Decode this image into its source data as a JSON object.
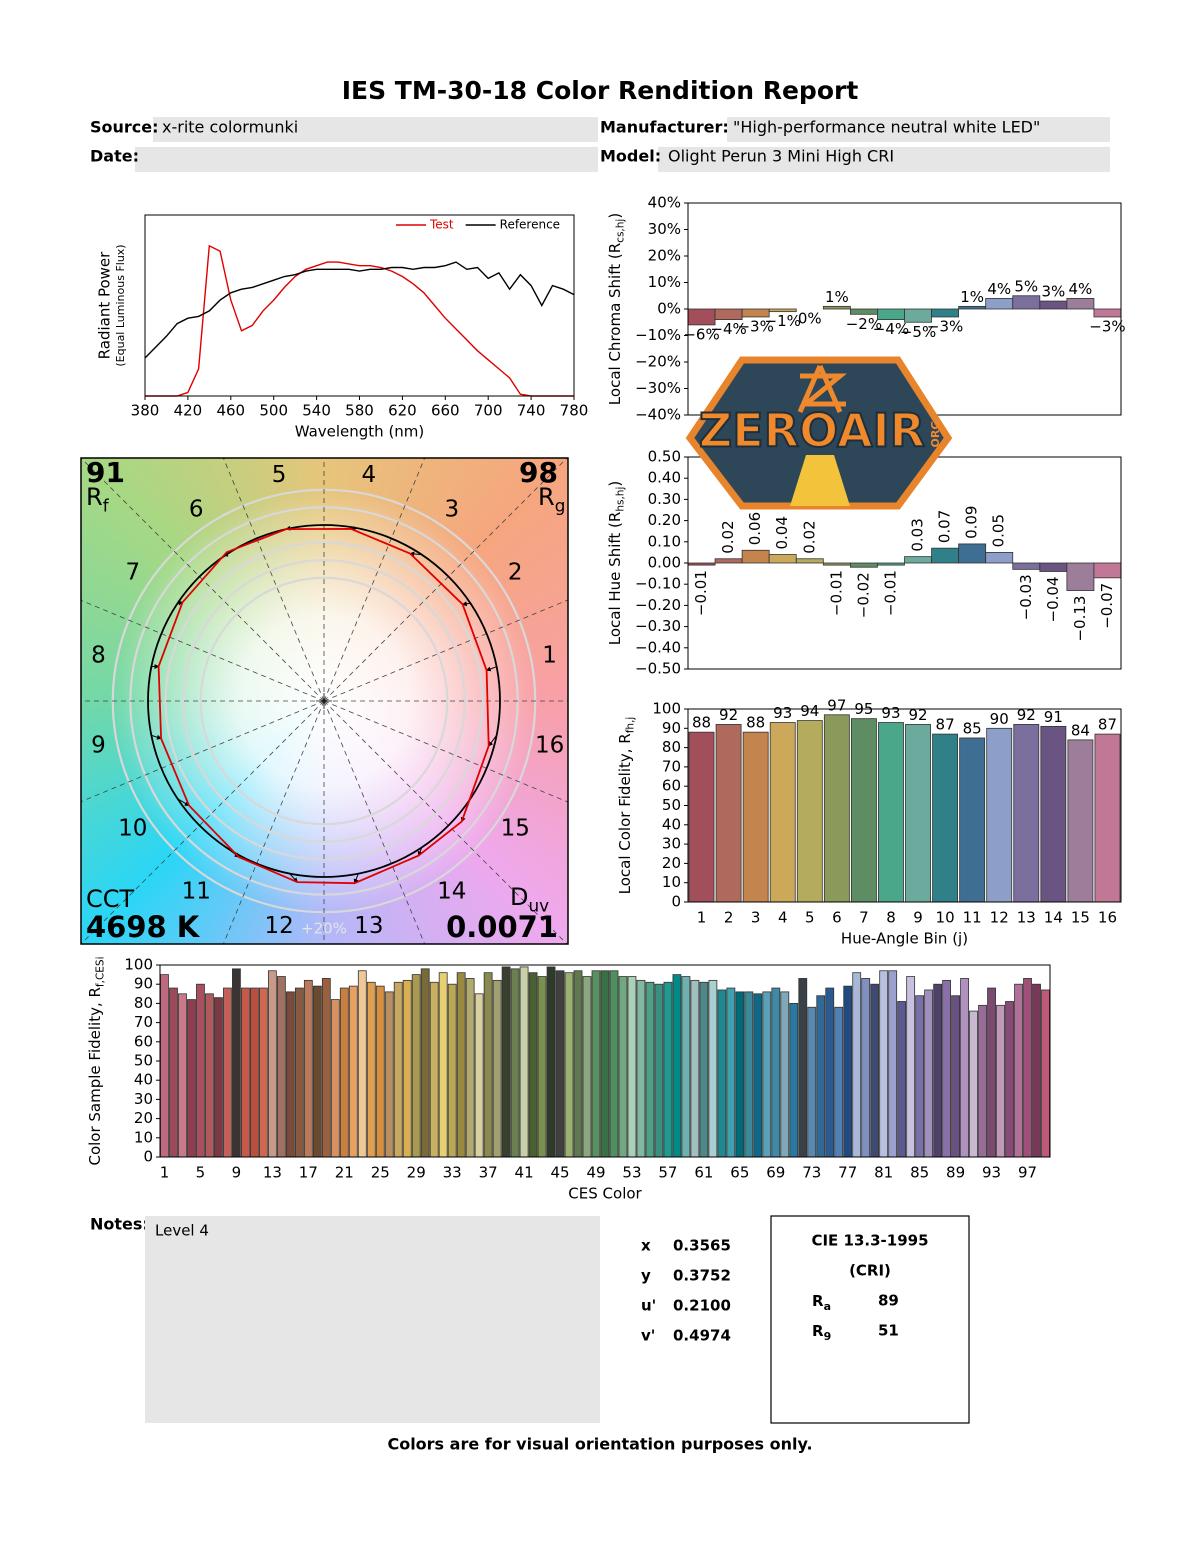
{
  "header": {
    "title": "IES TM-30-18 Color Rendition Report",
    "source": {
      "label": "Source:",
      "value": "x-rite colormunki"
    },
    "manufacturer": {
      "label": "Manufacturer:",
      "value": "\"High-performance neutral white LED\""
    },
    "date": {
      "label": "Date:"
    },
    "model": {
      "label": "Model:",
      "value": "Olight Perun 3 Mini High CRI"
    }
  },
  "chart_data": [
    {
      "type": "line",
      "x": [
        380,
        390,
        400,
        410,
        420,
        430,
        440,
        450,
        460,
        470,
        480,
        490,
        500,
        510,
        520,
        530,
        540,
        550,
        560,
        570,
        580,
        590,
        600,
        610,
        620,
        630,
        640,
        650,
        660,
        670,
        680,
        690,
        700,
        710,
        720,
        730,
        740,
        750,
        760,
        770,
        780
      ],
      "series": [
        {
          "name": "Test",
          "color": "#e00000",
          "values": [
            0,
            0,
            0,
            0,
            0.02,
            0.15,
            0.83,
            0.8,
            0.53,
            0.36,
            0.39,
            0.47,
            0.53,
            0.6,
            0.66,
            0.7,
            0.72,
            0.74,
            0.74,
            0.73,
            0.72,
            0.72,
            0.71,
            0.69,
            0.66,
            0.62,
            0.57,
            0.5,
            0.43,
            0.37,
            0.31,
            0.25,
            0.2,
            0.15,
            0.1,
            0.01,
            0,
            0,
            0,
            0,
            0
          ]
        },
        {
          "name": "Reference",
          "color": "#000000",
          "values": [
            0.21,
            0.27,
            0.33,
            0.4,
            0.43,
            0.44,
            0.47,
            0.53,
            0.57,
            0.59,
            0.6,
            0.62,
            0.64,
            0.66,
            0.67,
            0.69,
            0.7,
            0.7,
            0.7,
            0.7,
            0.69,
            0.7,
            0.7,
            0.71,
            0.71,
            0.7,
            0.71,
            0.71,
            0.72,
            0.74,
            0.7,
            0.71,
            0.65,
            0.68,
            0.59,
            0.67,
            0.61,
            0.5,
            0.61,
            0.59,
            0.56
          ]
        }
      ],
      "xlim": [
        380,
        780
      ],
      "xticks": [
        380,
        420,
        460,
        500,
        540,
        580,
        620,
        660,
        700,
        740,
        780
      ],
      "ylim": [
        0,
        1
      ],
      "legend": "upper right",
      "xlabel": "Wavelength (nm)",
      "ylabel": "Radiant Power",
      "ylabel_note": "(Equal Luminous Flux)"
    },
    {
      "type": "vector",
      "rf": 91,
      "rf_label": {
        "text": "R",
        "sub": "f"
      },
      "rg": 98,
      "rg_label": {
        "text": "R",
        "sub": "g"
      },
      "cct_label": "CCT",
      "cct": "4698 K",
      "duv_label": {
        "text": "D",
        "sub": "uv"
      },
      "duv": 0.0071,
      "bins": [
        "1",
        "2",
        "3",
        "4",
        "5",
        "6",
        "7",
        "8",
        "9",
        "10",
        "11",
        "12",
        "13",
        "14",
        "15",
        "16"
      ],
      "scale_label": "+20%",
      "test_color": "#e00000",
      "reference_color": "#000000"
    },
    {
      "type": "bar",
      "values": [
        -6,
        -4,
        -3,
        -1,
        0,
        1,
        -2,
        -4,
        -5,
        -3,
        1,
        4,
        5,
        3,
        4,
        -3
      ],
      "value_labels": [
        "−6%",
        "−4%",
        "−3%",
        "−1%",
        "0%",
        "1%",
        "−2%",
        "−4%",
        "−5%",
        "−3%",
        "1%",
        "4%",
        "5%",
        "3%",
        "4%",
        "−3%"
      ],
      "colors": [
        "#a34f5b",
        "#b0695d",
        "#c4844e",
        "#cca95a",
        "#b5ab5c",
        "#8b9a5a",
        "#5e8c63",
        "#4aa78a",
        "#6baa9c",
        "#2f8088",
        "#3f6e93",
        "#8d9fc8",
        "#7b6f9d",
        "#6a5481",
        "#9c7e9a",
        "#c07896"
      ],
      "ylim": [
        -40,
        40
      ],
      "yticks": [
        {
          "value": -40,
          "label": "−40%"
        },
        {
          "value": -30,
          "label": "−30%"
        },
        {
          "value": -20,
          "label": "−20%"
        },
        {
          "value": -10,
          "label": "−10%"
        },
        {
          "value": 0,
          "label": "0%"
        },
        {
          "value": 10,
          "label": "10%"
        },
        {
          "value": 20,
          "label": "20%"
        },
        {
          "value": 30,
          "label": "30%"
        },
        {
          "value": 40,
          "label": "40%"
        }
      ],
      "ylabel": {
        "text": "Local Chroma Shift (R",
        "sub": "cs,hj",
        "suffix": ")"
      }
    },
    {
      "type": "bar",
      "values": [
        -0.01,
        0.02,
        0.06,
        0.04,
        0.02,
        -0.01,
        -0.02,
        -0.01,
        0.03,
        0.07,
        0.09,
        0.05,
        -0.03,
        -0.04,
        -0.13,
        -0.07
      ],
      "value_labels": [
        "−0.01",
        "0.02",
        "0.06",
        "0.04",
        "0.02",
        "−0.01",
        "−0.02",
        "−0.01",
        "0.03",
        "0.07",
        "0.09",
        "0.05",
        "−0.03",
        "−0.04",
        "−0.13",
        "−0.07"
      ],
      "colors": [
        "#a34f5b",
        "#b0695d",
        "#c4844e",
        "#cca95a",
        "#b5ab5c",
        "#8b9a5a",
        "#5e8c63",
        "#4aa78a",
        "#6baa9c",
        "#2f8088",
        "#3f6e93",
        "#8d9fc8",
        "#7b6f9d",
        "#6a5481",
        "#9c7e9a",
        "#c07896"
      ],
      "ylim": [
        -0.5,
        0.5
      ],
      "yticks": [
        {
          "value": -0.5,
          "label": "−0.50"
        },
        {
          "value": -0.4,
          "label": "−0.40"
        },
        {
          "value": -0.3,
          "label": "−0.30"
        },
        {
          "value": -0.2,
          "label": "−0.20"
        },
        {
          "value": -0.1,
          "label": "−0.10"
        },
        {
          "value": 0,
          "label": "0.00"
        },
        {
          "value": 0.1,
          "label": "0.10"
        },
        {
          "value": 0.2,
          "label": "0.20"
        },
        {
          "value": 0.3,
          "label": "0.30"
        },
        {
          "value": 0.4,
          "label": "0.40"
        },
        {
          "value": 0.5,
          "label": "0.50"
        }
      ],
      "ylabel": {
        "text": "Local Hue Shift (R",
        "sub": "hs,hj",
        "suffix": ")"
      }
    },
    {
      "type": "bar",
      "categories": [
        "1",
        "2",
        "3",
        "4",
        "5",
        "6",
        "7",
        "8",
        "9",
        "10",
        "11",
        "12",
        "13",
        "14",
        "15",
        "16"
      ],
      "values": [
        88,
        92,
        88,
        93,
        94,
        97,
        95,
        93,
        92,
        87,
        85,
        90,
        92,
        91,
        84,
        87
      ],
      "colors": [
        "#a34f5b",
        "#b0695d",
        "#c4844e",
        "#cca95a",
        "#b5ab5c",
        "#8b9a5a",
        "#5e8c63",
        "#4aa78a",
        "#6baa9c",
        "#2f8088",
        "#3f6e93",
        "#8d9fc8",
        "#7b6f9d",
        "#6a5481",
        "#9c7e9a",
        "#c07896"
      ],
      "ylim": [
        0,
        100
      ],
      "yticks": [
        0,
        10,
        20,
        30,
        40,
        50,
        60,
        70,
        80,
        90,
        100
      ],
      "xlabel": "Hue-Angle Bin (j)",
      "ylabel": {
        "text": "Local Color Fidelity, R",
        "sub": "fh,j"
      }
    },
    {
      "type": "bar",
      "categories": [
        "1",
        null,
        null,
        null,
        "5",
        null,
        null,
        null,
        "9",
        null,
        null,
        null,
        "13",
        null,
        null,
        null,
        "17",
        null,
        null,
        null,
        "21",
        null,
        null,
        null,
        "25",
        null,
        null,
        null,
        "29",
        null,
        null,
        null,
        "33",
        null,
        null,
        null,
        "37",
        null,
        null,
        null,
        "41",
        null,
        null,
        null,
        "45",
        null,
        null,
        null,
        "49",
        null,
        null,
        null,
        "53",
        null,
        null,
        null,
        "57",
        null,
        null,
        null,
        "61",
        null,
        null,
        null,
        "65",
        null,
        null,
        null,
        "69",
        null,
        null,
        null,
        "73",
        null,
        null,
        null,
        "77",
        null,
        null,
        null,
        "81",
        null,
        null,
        null,
        "85",
        null,
        null,
        null,
        "89",
        null,
        null,
        null,
        "93",
        null,
        null,
        null,
        "97",
        null,
        null
      ],
      "values": [
        95,
        88,
        85,
        82,
        90,
        85,
        83,
        88,
        98,
        88,
        88,
        88,
        97,
        94,
        86,
        88,
        92,
        89,
        93,
        82,
        88,
        89,
        97,
        91,
        89,
        86,
        91,
        92,
        95,
        98,
        91,
        96,
        90,
        96,
        93,
        85,
        96,
        92,
        99,
        98,
        99,
        96,
        94,
        99,
        97,
        96,
        97,
        94,
        97,
        97,
        97,
        94,
        94,
        92,
        91,
        90,
        91,
        95,
        94,
        92,
        91,
        92,
        87,
        88,
        86,
        86,
        85,
        86,
        88,
        86,
        80,
        93,
        78,
        84,
        88,
        78,
        89,
        96,
        93,
        90,
        97,
        97,
        81,
        94,
        84,
        87,
        90,
        92,
        84,
        93,
        76,
        79,
        88,
        79,
        81,
        90,
        93,
        90,
        87
      ],
      "colors": [
        "#c06a82",
        "#9c4a5a",
        "#c87a8a",
        "#8e3e4e",
        "#a85060",
        "#b05a5c",
        "#7a3a44",
        "#c4605a",
        "#3a3432",
        "#c85848",
        "#b85040",
        "#d06850",
        "#c89a8a",
        "#a07060",
        "#7a4a3a",
        "#8a5a40",
        "#b87a5a",
        "#6a4a30",
        "#9a6040",
        "#d89060",
        "#c88040",
        "#e8a060",
        "#f0c898",
        "#e0a050",
        "#d49040",
        "#b89060",
        "#c8a860",
        "#d8b050",
        "#a89a50",
        "#7a6a38",
        "#c8b060",
        "#e8d070",
        "#b8a858",
        "#9a8a40",
        "#b0aa70",
        "#d8d0a0",
        "#8a8a50",
        "#a0a070",
        "#3a4030",
        "#6a8050",
        "#c8d0a8",
        "#4a6030",
        "#7a9050",
        "#2e3a2a",
        "#404040",
        "#9ab070",
        "#607850",
        "#8aa880",
        "#5a9060",
        "#3a7048",
        "#509060",
        "#70a880",
        "#aad0b8",
        "#80b8a0",
        "#50a088",
        "#3a9080",
        "#209a90",
        "#008a88",
        "#70b0b0",
        "#a0c0c0",
        "#508888",
        "#a8d0d0",
        "#208890",
        "#40a0b0",
        "#006a78",
        "#3a8898",
        "#106888",
        "#5aa0b8",
        "#408aa8",
        "#80a8b8",
        "#2878a0",
        "#3a4048",
        "#5a88b0",
        "#306898",
        "#2a5a90",
        "#5080b8",
        "#204a80",
        "#a8b8d8",
        "#8090c0",
        "#404a70",
        "#b8c0e0",
        "#9aa0d0",
        "#5a5a90",
        "#c8c0e0",
        "#7a70a8",
        "#a090c0",
        "#50406a",
        "#8a70a8",
        "#6a5080",
        "#b090c0",
        "#c8b8d0",
        "#9a6a98",
        "#7a4a70",
        "#c098b8",
        "#8a4a78",
        "#b07098",
        "#a05078",
        "#7a3858",
        "#c05878"
      ],
      "ylim": [
        0,
        100
      ],
      "yticks": [
        0,
        10,
        20,
        30,
        40,
        50,
        60,
        70,
        80,
        90,
        100
      ],
      "xlabel": "CES Color",
      "ylabel": {
        "text": "Color Sample Fidelity, R",
        "sub": "f,CESi"
      }
    }
  ],
  "notes": {
    "label": "Notes:",
    "text": "Level 4"
  },
  "chromaticity": [
    {
      "label": "x",
      "value": "0.3565"
    },
    {
      "label": "y",
      "value": "0.3752"
    },
    {
      "label": "u'",
      "value": "0.2100"
    },
    {
      "label": "v'",
      "value": "0.4974"
    }
  ],
  "cri": {
    "title": "CIE 13.3-1995",
    "subtitle": "(CRI)",
    "ra": {
      "symbol": "R",
      "sub": "a",
      "value": 89
    },
    "r9": {
      "symbol": "R",
      "sub": "9",
      "value": 51
    }
  },
  "footer": "Colors are for visual orientation purposes only.",
  "watermark": {
    "text": "ZEROAIR",
    "sub": "ORG"
  }
}
